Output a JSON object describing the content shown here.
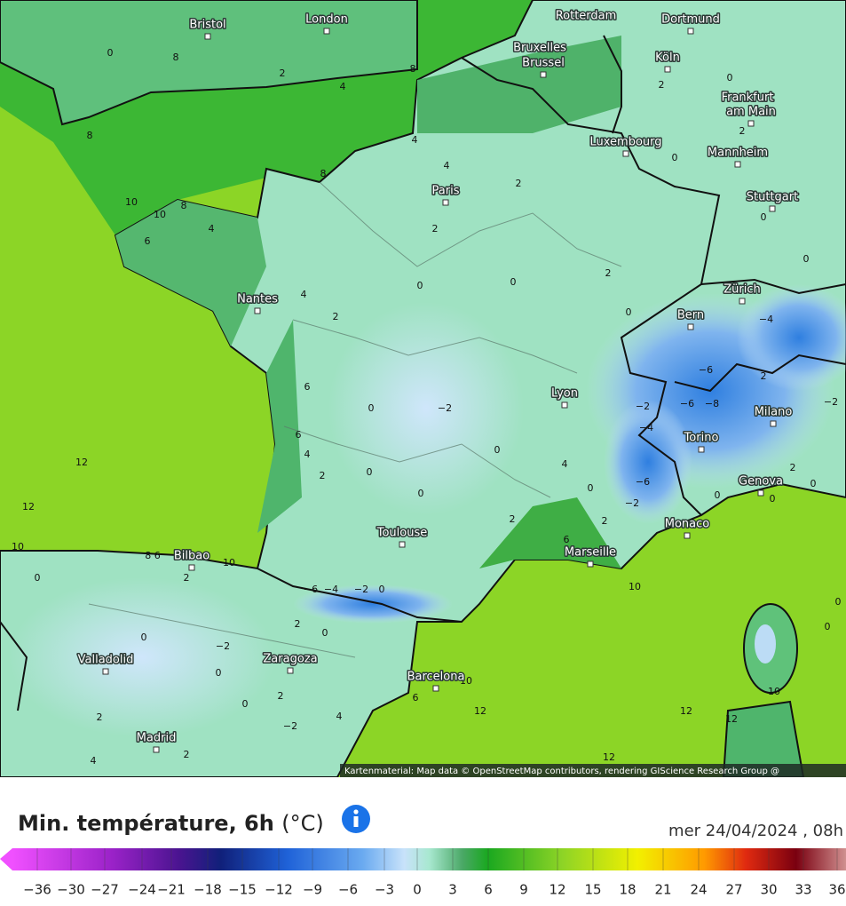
{
  "map": {
    "cities": [
      "Bristol",
      "London",
      "Rotterdam",
      "Dortmund",
      "Bruxelles",
      "Brussel",
      "Köln",
      "Frankfurt",
      "am Main",
      "Luxembourg",
      "Mannheim",
      "Stuttgart",
      "Paris",
      "Nantes",
      "Zürich",
      "Bern",
      "Lyon",
      "Milano",
      "Torino",
      "Genova",
      "Monaco",
      "Marseille",
      "Toulouse",
      "Bilbao",
      "Valladolid",
      "Zaragoza",
      "Barcelona",
      "Madrid"
    ],
    "contour_labels": [
      "0",
      "8",
      "2",
      "4",
      "8",
      "8",
      "4",
      "4",
      "2",
      "2",
      "8",
      "10",
      "10",
      "8",
      "4",
      "6",
      "4",
      "2",
      "0",
      "0",
      "2",
      "0",
      "2",
      "0",
      "0",
      "2",
      "0",
      "0",
      "0",
      "−2",
      "6",
      "6",
      "4",
      "2",
      "0",
      "0",
      "0",
      "2",
      "4",
      "0",
      "2",
      "−2",
      "−6",
      "−4",
      "−2",
      "−6",
      "−8",
      "−6",
      "−4",
      "2",
      "−2",
      "2",
      "0",
      "0",
      "0",
      "6",
      "10",
      "12",
      "12",
      "10",
      "8 6",
      "10",
      "0",
      "2",
      "−6",
      "−4",
      "−2",
      "0",
      "2",
      "0",
      "0",
      "−2",
      "0",
      "0",
      "2",
      "4",
      "−2",
      "2",
      "2",
      "4",
      "10",
      "6",
      "12",
      "12",
      "12",
      "10",
      "12",
      "0",
      "0"
    ],
    "attribution": "Kartenmaterial: Map data © OpenStreetMap contributors, rendering GIScience Research Group @"
  },
  "footer": {
    "title": "Min. température, 6h",
    "unit": "(°C)",
    "date": "mer 24/04/2024 , 08h"
  },
  "legend": {
    "ticks": [
      "−36",
      "−30",
      "−27",
      "−24",
      "−21",
      "−18",
      "−15",
      "−12",
      "−9",
      "−6",
      "−3",
      "0",
      "3",
      "6",
      "9",
      "12",
      "15",
      "18",
      "21",
      "24",
      "27",
      "30",
      "33",
      "36"
    ]
  }
}
